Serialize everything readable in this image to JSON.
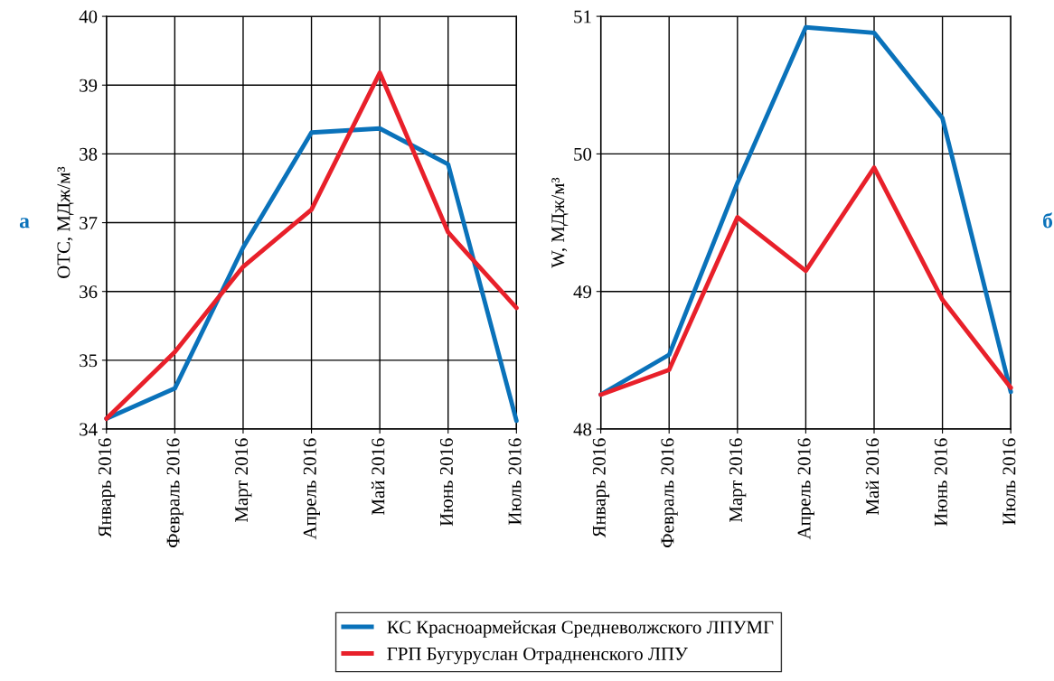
{
  "chart_data": [
    {
      "type": "line",
      "ylabel": "ОТС, МДж/м³",
      "categories": [
        "Январь 2016",
        "Февраль 2016",
        "Март 2016",
        "Апрель 2016",
        "Май 2016",
        "Июнь 2016",
        "Июль 2016"
      ],
      "series": [
        {
          "name": "КС Красноармейская Средневолжского ЛПУМГ",
          "color": "#0a72ba",
          "values": [
            34.15,
            34.59,
            36.64,
            38.31,
            38.37,
            37.85,
            34.12
          ]
        },
        {
          "name": "ГРП Бугуруслан Отрадненского ЛПУ",
          "color": "#e8202a",
          "values": [
            34.15,
            35.12,
            36.36,
            37.19,
            39.18,
            36.86,
            35.76
          ]
        }
      ],
      "ylim": [
        34,
        40
      ],
      "yticks": [
        34,
        35,
        36,
        37,
        38,
        39,
        40
      ],
      "grid": true,
      "legend": "bottom",
      "marker": "none",
      "line_style": "solid",
      "annotations": [
        "а"
      ]
    },
    {
      "type": "line",
      "ylabel": "W, МДж/м³",
      "categories": [
        "Январь 2016",
        "Февраль 2016",
        "Март 2016",
        "Апрель 2016",
        "Май 2016",
        "Июнь 2016",
        "Июль 2016"
      ],
      "series": [
        {
          "color": "#0a72ba",
          "values": [
            48.25,
            48.54,
            49.79,
            50.92,
            50.88,
            50.26,
            48.27
          ]
        },
        {
          "color": "#e8202a",
          "values": [
            48.25,
            48.43,
            49.54,
            49.15,
            49.9,
            48.94,
            48.3
          ]
        }
      ],
      "ylim": [
        48,
        51
      ],
      "yticks": [
        48,
        49,
        50,
        51
      ],
      "grid": true,
      "marker": "none",
      "line_style": "solid",
      "annotations": [
        "б"
      ]
    }
  ]
}
